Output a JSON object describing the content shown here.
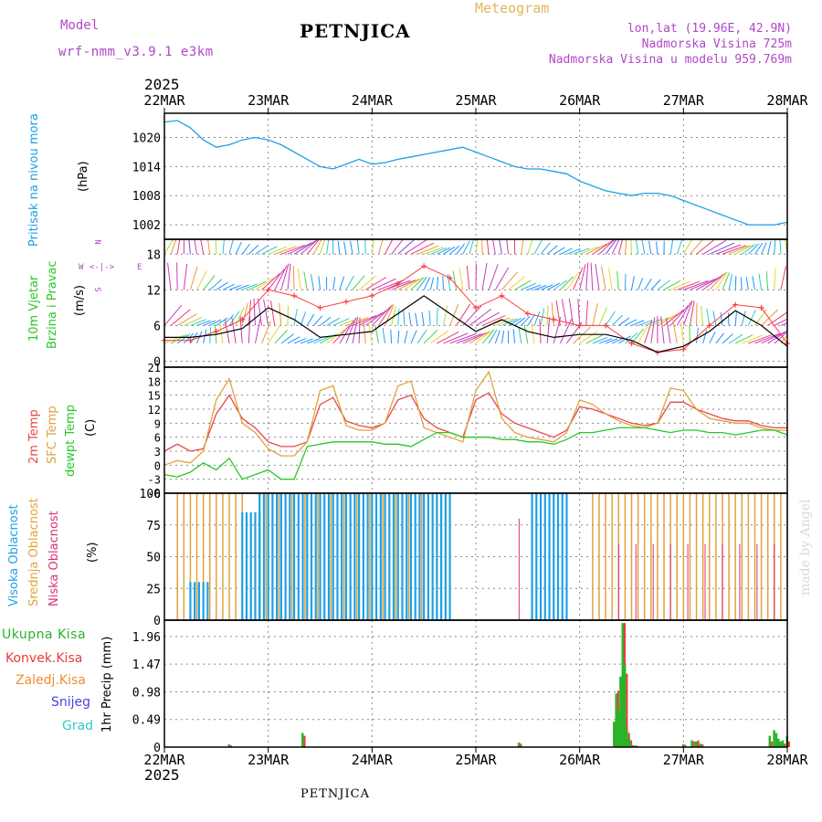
{
  "header": {
    "model_label": "Model",
    "model_value": "wrf-nmm_v3.9.1 e3km",
    "title": "PETNJICA",
    "meteogram_label": "Meteogram",
    "lonlat": "lon,lat (19.96E, 42.9N)",
    "elevation": "Nadmorska Visina 725m",
    "model_elevation": "Nadmorska Visina u modelu 959.769m",
    "year_top": "2025",
    "year_bottom": "2025",
    "footer_title": "PETNJICA",
    "watermark": "made by Angel"
  },
  "colors": {
    "pressure": "#1ea0e6",
    "wind_speed": "#000000",
    "gust": "#ff3c3c",
    "temp2m": "#e84848",
    "sfc_temp": "#e2a23c",
    "dewpoint": "#28c828",
    "high_cloud": "#1ea0e6",
    "mid_cloud": "#e2a23c",
    "low_cloud": "#d8327a",
    "total_precip": "#28b428",
    "conv_precip": "#e83c3c",
    "freezing_precip": "#f08c32",
    "snow": "#4646dc",
    "hail": "#32c8c8",
    "purple_text": "#b046c8"
  },
  "chart_data": [
    {
      "type": "line",
      "name": "pressure",
      "title": "Pritisak na nivou mora",
      "ylabel": "(hPa)",
      "ylim": [
        999,
        1025
      ],
      "yticks": [
        "1020",
        "1014",
        "1008",
        "1002"
      ],
      "ytick_values": [
        1020,
        1014,
        1008,
        1002
      ],
      "x_hours": [
        0,
        3,
        6,
        9,
        12,
        15,
        18,
        21,
        24,
        27,
        30,
        33,
        36,
        39,
        42,
        45,
        48,
        51,
        54,
        57,
        60,
        63,
        66,
        69,
        72,
        75,
        78,
        81,
        84,
        87,
        90,
        93,
        96,
        99,
        102,
        105,
        108,
        111,
        114,
        117,
        120,
        123,
        126,
        129,
        132,
        135,
        138,
        141,
        144
      ],
      "values": [
        1023.2,
        1023.5,
        1022.0,
        1019.5,
        1018.0,
        1018.5,
        1019.5,
        1020.0,
        1019.5,
        1018.5,
        1017.0,
        1015.5,
        1014.0,
        1013.5,
        1014.5,
        1015.5,
        1014.5,
        1014.8,
        1015.5,
        1016.0,
        1016.5,
        1017.0,
        1017.5,
        1018.0,
        1017.0,
        1016.0,
        1015.0,
        1014.0,
        1013.5,
        1013.5,
        1013.0,
        1012.5,
        1011.0,
        1010.0,
        1009.0,
        1008.5,
        1008.0,
        1008.5,
        1008.5,
        1008.0,
        1007.0,
        1006.0,
        1005.0,
        1004.0,
        1003.0,
        1002.0,
        1002.0,
        1002.0,
        1002.5
      ]
    },
    {
      "type": "line",
      "name": "wind",
      "title": "10m Vjetar Brzina i Pravac",
      "title_line1": "10m Vjetar",
      "title_line2": "Brzina i Pravac",
      "ylabel": "(m/s)",
      "ylim": [
        -1,
        20.5
      ],
      "yticks": [
        "18",
        "12",
        "6",
        "0"
      ],
      "ytick_values": [
        18,
        12,
        6,
        0
      ],
      "compass": [
        "N",
        "W",
        "E",
        "S"
      ],
      "x_hours": [
        0,
        6,
        12,
        18,
        24,
        30,
        36,
        42,
        48,
        54,
        60,
        66,
        72,
        78,
        84,
        90,
        96,
        102,
        108,
        114,
        120,
        126,
        132,
        138,
        144
      ],
      "series": [
        {
          "name": "wind speed",
          "values": [
            4,
            4,
            4.5,
            5.5,
            9,
            7,
            4,
            4.5,
            5,
            8,
            11,
            8,
            5,
            7,
            5,
            4,
            4.5,
            4.5,
            3.5,
            1.5,
            2.5,
            5,
            8.5,
            6,
            2.5
          ]
        },
        {
          "name": "wind gust",
          "values": [
            3.5,
            3.5,
            5,
            7,
            12,
            11,
            9,
            10,
            11,
            13,
            16,
            14,
            9,
            11,
            8,
            7,
            6,
            6,
            3,
            1.5,
            2,
            6,
            9.5,
            9,
            3
          ]
        }
      ],
      "barb_rows": [
        {
          "level": 18,
          "from_hour": 0,
          "to_hour": 144
        },
        {
          "level": 12,
          "from_hour": 0,
          "to_hour": 144
        },
        {
          "level": 6,
          "from_hour": 0,
          "to_hour": 144
        },
        {
          "level": 3,
          "from_hour": 0,
          "to_hour": 144
        }
      ]
    },
    {
      "type": "line",
      "name": "temperature",
      "title_line1": "2m Temp",
      "title_line2": "SFC Temp",
      "title_line3": "dewpt Temp",
      "ylabel": "(C)",
      "ylim": [
        -6,
        21
      ],
      "yticks": [
        "21",
        "18",
        "15",
        "12",
        "9",
        "6",
        "3",
        "0",
        "-3",
        "-6"
      ],
      "ytick_values": [
        21,
        18,
        15,
        12,
        9,
        6,
        3,
        0,
        -3,
        -6
      ],
      "x_hours": [
        0,
        3,
        6,
        9,
        12,
        15,
        18,
        21,
        24,
        27,
        30,
        33,
        36,
        39,
        42,
        45,
        48,
        51,
        54,
        57,
        60,
        63,
        66,
        69,
        72,
        75,
        78,
        81,
        84,
        87,
        90,
        93,
        96,
        99,
        102,
        105,
        108,
        111,
        114,
        117,
        120,
        123,
        126,
        129,
        132,
        135,
        138,
        141,
        144
      ],
      "series": [
        {
          "name": "2m Temp",
          "values": [
            3,
            4.5,
            3,
            3.5,
            11,
            15,
            10,
            8,
            5,
            4,
            4,
            5,
            13,
            14.5,
            9.5,
            8.5,
            8,
            9,
            14,
            15,
            10,
            8,
            7,
            6,
            14,
            15.5,
            11,
            9,
            8,
            7,
            6,
            7.5,
            12.5,
            12,
            11,
            10,
            9,
            8.5,
            9,
            13.5,
            13.5,
            12,
            11,
            10,
            9.5,
            9.5,
            8.5,
            8,
            8
          ]
        },
        {
          "name": "SFC Temp",
          "values": [
            0,
            1,
            0.5,
            3,
            14,
            18.5,
            9,
            7,
            3.5,
            2,
            2,
            5,
            16,
            17,
            8.5,
            7.5,
            7.5,
            9,
            17,
            18,
            8,
            7,
            6,
            5,
            16,
            20,
            10,
            7,
            6,
            5.5,
            5,
            7,
            14,
            13,
            11,
            9.5,
            8.5,
            8,
            9,
            16.5,
            16,
            12,
            10,
            9.5,
            9,
            9,
            8,
            7.5,
            7.5
          ]
        },
        {
          "name": "Dewpoint",
          "values": [
            -2,
            -2.5,
            -1.5,
            0.5,
            -1,
            1.5,
            -3,
            -2,
            -1,
            -3,
            -3,
            4,
            4.5,
            5,
            5,
            5,
            5,
            4.5,
            4.5,
            4,
            5.5,
            7,
            7,
            6,
            6,
            6,
            5.5,
            5.5,
            5,
            5,
            4.5,
            5.5,
            7,
            7,
            7.5,
            8,
            8,
            8,
            7.5,
            7,
            7.5,
            7.5,
            7,
            7,
            6.5,
            7,
            7.5,
            7.5,
            6.5
          ]
        }
      ]
    },
    {
      "type": "bar",
      "name": "cloudiness",
      "title_line1": "Visoka Oblacnost",
      "title_line2": "Srednja Oblacnost",
      "title_line3": "Niska Oblacnost",
      "ylabel": "(%)",
      "ylim": [
        0,
        100
      ],
      "yticks": [
        "100",
        "75",
        "50",
        "25",
        "0"
      ],
      "ytick_values": [
        100,
        75,
        50,
        25,
        0
      ],
      "high_cloud_segments": [
        {
          "from_hour": 6,
          "to_hour": 10,
          "value": 30
        },
        {
          "from_hour": 18,
          "to_hour": 22,
          "value": 85
        },
        {
          "from_hour": 22,
          "to_hour": 66,
          "value": 100
        },
        {
          "from_hour": 85,
          "to_hour": 93,
          "value": 100
        }
      ],
      "mid_cloud_segments": [
        {
          "from_hour": 3,
          "to_hour": 19,
          "value": 100
        },
        {
          "from_hour": 22,
          "to_hour": 62,
          "value": 100
        },
        {
          "from_hour": 99,
          "to_hour": 144,
          "value": 100
        }
      ],
      "low_cloud_segments": [
        {
          "from_hour": 82,
          "to_hour": 84,
          "value": 80
        },
        {
          "from_hour": 105,
          "to_hour": 144,
          "value": 60
        }
      ]
    },
    {
      "type": "bar",
      "name": "precipitation",
      "legend": [
        "Ukupna Kisa",
        "Konvek.Kisa",
        "Zaledj.Kisa",
        "Snijeg",
        "Grad"
      ],
      "ylabel": "1hr Precip (mm)",
      "ylim": [
        0,
        2.25
      ],
      "yticks": [
        "1.96",
        "1.47",
        "0.98",
        "0.49",
        "0"
      ],
      "ytick_values": [
        1.96,
        1.47,
        0.98,
        0.49,
        0
      ],
      "x_hours": [
        15,
        32,
        82,
        104,
        104.5,
        105,
        105.5,
        106,
        106.5,
        107,
        107.5,
        108,
        109,
        120,
        122,
        123,
        124,
        140,
        141,
        141.5,
        142,
        142.5,
        143,
        144
      ],
      "total": [
        0.05,
        0.25,
        0.08,
        0.45,
        0.95,
        0.65,
        1.25,
        2.2,
        1.45,
        0.3,
        0.15,
        0.04,
        0.03,
        0.05,
        0.12,
        0.1,
        0.06,
        0.2,
        0.3,
        0.25,
        0.15,
        0.1,
        0.12,
        0.2
      ],
      "convective": [
        0.03,
        0.2,
        0.06,
        0.45,
        1.0,
        0.7,
        1.3,
        2.2,
        1.3,
        0.25,
        0.12,
        0.03,
        0.02,
        0.04,
        0.1,
        0.12,
        0.05,
        0.1,
        0.15,
        0.12,
        0.08,
        0.06,
        0.06,
        0.1
      ]
    }
  ],
  "x_axis": {
    "labels": [
      "22MAR",
      "23MAR",
      "24MAR",
      "25MAR",
      "26MAR",
      "27MAR",
      "28MAR"
    ],
    "range_hours": [
      0,
      144
    ]
  }
}
